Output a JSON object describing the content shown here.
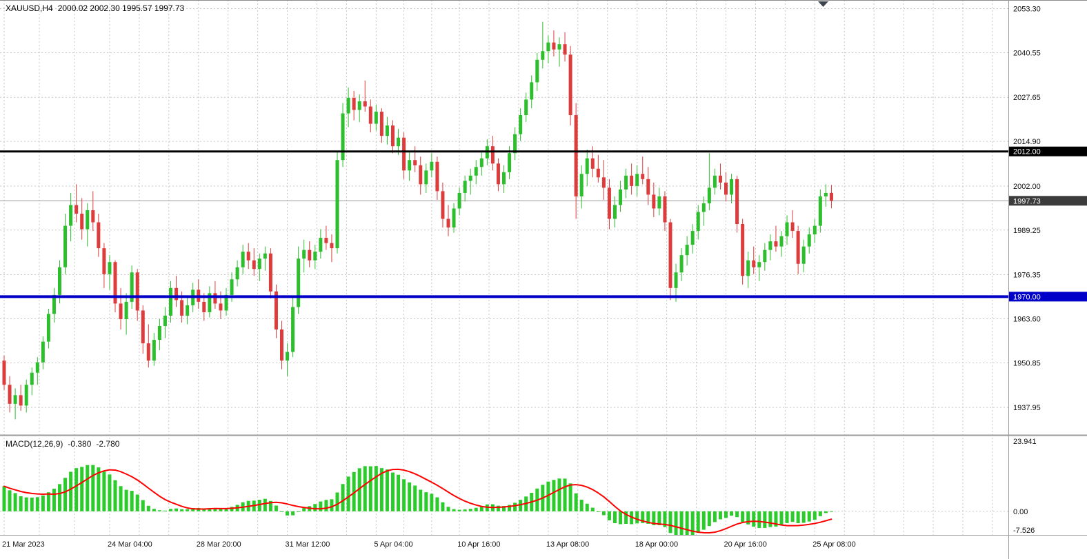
{
  "window": {
    "symbol_period": "XAUUSD,H4",
    "ohlc_text": "2000.02 2002.30 1995.57 1997.73"
  },
  "indicator": {
    "label": "MACD(12,26,9)",
    "value_main": "-0.380",
    "value_signal": "-2.780"
  },
  "chart_data": {
    "type": "candlestick",
    "symbol": "XAUUSD",
    "timeframe": "H4",
    "title": "XAUUSD,H4 2000.02 2002.30 1995.57 1997.73",
    "colors": {
      "background": "#FFFFFF",
      "bull": "#2DBE2D",
      "bear": "#DC3C3C",
      "grid": "#C6C6C6",
      "axis_text": "#111111",
      "bid_line": "#9A9A9A",
      "resistance": "#000000",
      "support": "#0000C8",
      "macd_histogram": "#2BCB2B",
      "macd_signal": "#FF0000"
    },
    "price_axis": {
      "y_top": 2055.8,
      "y_bottom": 1930.2,
      "ticks": [
        "2053.30",
        "2040.55",
        "2027.65",
        "2014.90",
        "2002.00",
        "1989.25",
        "1976.35",
        "1963.60",
        "1950.85",
        "1937.95"
      ]
    },
    "x_labels": [
      {
        "index": 0,
        "label": "21 Mar 2023"
      },
      {
        "index": 19,
        "label": "24 Mar 04:00"
      },
      {
        "index": 35,
        "label": "28 Mar 20:00"
      },
      {
        "index": 51,
        "label": "31 Mar 12:00"
      },
      {
        "index": 67,
        "label": "5 Apr 04:00"
      },
      {
        "index": 82,
        "label": "10 Apr 16:00"
      },
      {
        "index": 98,
        "label": "13 Apr 08:00"
      },
      {
        "index": 114,
        "label": "18 Apr 00:00"
      },
      {
        "index": 130,
        "label": "20 Apr 16:00"
      },
      {
        "index": 146,
        "label": "25 Apr 08:00"
      }
    ],
    "levels": [
      {
        "value": 2012.0,
        "label": "2012.00",
        "color": "#000000",
        "width": 3
      },
      {
        "value": 1970.0,
        "label": "1970.00",
        "color": "#0000C8",
        "width": 4
      }
    ],
    "current_price": {
      "value": 1997.73,
      "label": "1997.73",
      "color": "#3C3C3C"
    },
    "macd": {
      "params": {
        "fast": 12,
        "slow": 26,
        "signal": 9
      },
      "main": -0.38,
      "signal": -2.78,
      "histogram_color": "#2BCB2B",
      "signal_color": "#FF0000",
      "axis": {
        "max": 23.941,
        "min": -7.526,
        "ticks": [
          {
            "v": 23.941,
            "label": "23.941"
          },
          {
            "v": 0,
            "label": "0.00"
          },
          {
            "v": -7.526,
            "label": "-7.526"
          }
        ]
      }
    },
    "candles": [
      [
        1951.5,
        1953.0,
        1943.0,
        1944.5
      ],
      [
        1944.5,
        1947.0,
        1936.5,
        1939.0
      ],
      [
        1939.0,
        1943.5,
        1934.5,
        1941.5
      ],
      [
        1941.5,
        1944.5,
        1937.0,
        1938.5
      ],
      [
        1938.5,
        1946.0,
        1936.5,
        1944.5
      ],
      [
        1944.5,
        1949.5,
        1941.5,
        1948.0
      ],
      [
        1948.0,
        1952.5,
        1944.5,
        1951.0
      ],
      [
        1951.0,
        1958.5,
        1949.0,
        1957.0
      ],
      [
        1957.0,
        1966.5,
        1955.0,
        1965.0
      ],
      [
        1965.0,
        1972.5,
        1962.5,
        1970.5
      ],
      [
        1970.5,
        1980.5,
        1968.0,
        1978.5
      ],
      [
        1978.5,
        1994.0,
        1976.5,
        1990.5
      ],
      [
        1990.5,
        2000.0,
        1986.0,
        1996.5
      ],
      [
        1996.5,
        2002.5,
        1991.5,
        1994.0
      ],
      [
        1994.0,
        1998.5,
        1986.5,
        1989.5
      ],
      [
        1989.5,
        1997.0,
        1984.5,
        1995.0
      ],
      [
        1995.0,
        2000.5,
        1989.0,
        1991.5
      ],
      [
        1991.5,
        1994.0,
        1981.5,
        1984.0
      ],
      [
        1984.0,
        1985.5,
        1972.5,
        1976.5
      ],
      [
        1976.5,
        1982.0,
        1972.0,
        1980.0
      ],
      [
        1980.0,
        1980.5,
        1965.5,
        1968.0
      ],
      [
        1968.0,
        1972.5,
        1960.5,
        1963.5
      ],
      [
        1963.5,
        1971.0,
        1959.0,
        1968.5
      ],
      [
        1968.5,
        1979.0,
        1966.5,
        1977.0
      ],
      [
        1977.0,
        1978.0,
        1963.0,
        1966.0
      ],
      [
        1966.0,
        1967.5,
        1953.5,
        1956.5
      ],
      [
        1956.5,
        1962.0,
        1949.5,
        1951.5
      ],
      [
        1951.5,
        1959.5,
        1950.0,
        1957.5
      ],
      [
        1957.5,
        1963.5,
        1954.5,
        1961.5
      ],
      [
        1961.5,
        1967.0,
        1958.0,
        1964.5
      ],
      [
        1964.5,
        1974.5,
        1962.5,
        1972.5
      ],
      [
        1972.5,
        1976.0,
        1967.0,
        1969.0
      ],
      [
        1969.0,
        1971.5,
        1962.5,
        1964.5
      ],
      [
        1964.5,
        1970.0,
        1962.0,
        1967.5
      ],
      [
        1967.5,
        1974.0,
        1965.5,
        1972.0
      ],
      [
        1972.0,
        1975.0,
        1966.5,
        1968.5
      ],
      [
        1968.5,
        1971.0,
        1963.0,
        1965.5
      ],
      [
        1965.5,
        1973.0,
        1964.0,
        1971.0
      ],
      [
        1971.0,
        1974.5,
        1966.5,
        1968.0
      ],
      [
        1968.0,
        1971.5,
        1963.5,
        1966.0
      ],
      [
        1966.0,
        1972.5,
        1964.5,
        1970.5
      ],
      [
        1970.5,
        1977.0,
        1968.5,
        1975.0
      ],
      [
        1975.0,
        1980.5,
        1973.0,
        1978.5
      ],
      [
        1978.5,
        1985.0,
        1976.5,
        1983.0
      ],
      [
        1983.0,
        1985.5,
        1978.0,
        1980.5
      ],
      [
        1980.5,
        1984.0,
        1976.0,
        1978.0
      ],
      [
        1978.0,
        1982.5,
        1974.5,
        1981.0
      ],
      [
        1981.0,
        1984.5,
        1977.5,
        1982.5
      ],
      [
        1982.5,
        1984.0,
        1969.5,
        1971.5
      ],
      [
        1971.5,
        1973.5,
        1958.0,
        1960.5
      ],
      [
        1960.5,
        1963.0,
        1949.0,
        1951.5
      ],
      [
        1951.5,
        1956.5,
        1947.0,
        1954.0
      ],
      [
        1954.0,
        1970.0,
        1952.5,
        1967.0
      ],
      [
        1967.0,
        1984.5,
        1965.0,
        1981.0
      ],
      [
        1981.0,
        1986.5,
        1977.0,
        1983.5
      ],
      [
        1983.5,
        1986.0,
        1978.5,
        1980.5
      ],
      [
        1980.5,
        1985.0,
        1978.0,
        1983.0
      ],
      [
        1983.0,
        1989.5,
        1981.0,
        1987.0
      ],
      [
        1987.0,
        1990.5,
        1983.5,
        1985.5
      ],
      [
        1985.5,
        1988.0,
        1980.0,
        1984.0
      ],
      [
        1984.0,
        2012.0,
        1982.5,
        2009.5
      ],
      [
        2009.5,
        2026.0,
        2007.5,
        2023.0
      ],
      [
        2023.0,
        2030.5,
        2019.0,
        2027.5
      ],
      [
        2027.5,
        2029.5,
        2021.0,
        2024.0
      ],
      [
        2024.0,
        2028.5,
        2020.5,
        2026.5
      ],
      [
        2026.5,
        2032.5,
        2023.5,
        2025.0
      ],
      [
        2025.0,
        2027.0,
        2017.5,
        2020.0
      ],
      [
        2020.0,
        2025.5,
        2018.0,
        2023.5
      ],
      [
        2023.5,
        2024.5,
        2014.5,
        2016.5
      ],
      [
        2016.5,
        2022.0,
        2014.0,
        2019.5
      ],
      [
        2019.5,
        2021.0,
        2011.5,
        2013.5
      ],
      [
        2013.5,
        2018.5,
        2011.0,
        2016.0
      ],
      [
        2016.0,
        2017.5,
        2004.0,
        2006.5
      ],
      [
        2006.5,
        2012.0,
        2003.5,
        2009.5
      ],
      [
        2009.5,
        2013.5,
        2006.0,
        2008.0
      ],
      [
        2008.0,
        2010.5,
        1999.5,
        2002.5
      ],
      [
        2002.5,
        2008.5,
        2000.0,
        2006.5
      ],
      [
        2006.5,
        2011.5,
        2004.5,
        2009.0
      ],
      [
        2009.0,
        2010.5,
        1998.0,
        2000.5
      ],
      [
        2000.5,
        2003.0,
        1990.0,
        1992.5
      ],
      [
        1992.5,
        1996.5,
        1987.5,
        1990.0
      ],
      [
        1990.0,
        1997.0,
        1988.5,
        1995.5
      ],
      [
        1995.5,
        2001.5,
        1993.5,
        2000.0
      ],
      [
        2000.0,
        2005.0,
        1997.5,
        2003.5
      ],
      [
        2003.5,
        2007.0,
        1999.5,
        2005.0
      ],
      [
        2005.0,
        2009.5,
        2002.5,
        2007.5
      ],
      [
        2007.5,
        2012.0,
        2005.0,
        2010.0
      ],
      [
        2010.0,
        2015.5,
        2008.0,
        2013.5
      ],
      [
        2013.5,
        2016.5,
        2006.5,
        2008.5
      ],
      [
        2008.5,
        2010.0,
        2000.5,
        2002.5
      ],
      [
        2002.5,
        2008.0,
        2000.0,
        2006.0
      ],
      [
        2006.0,
        2013.5,
        2004.0,
        2011.5
      ],
      [
        2011.5,
        2019.0,
        2009.5,
        2017.0
      ],
      [
        2017.0,
        2024.5,
        2015.0,
        2022.5
      ],
      [
        2022.5,
        2029.0,
        2020.5,
        2027.0
      ],
      [
        2027.0,
        2034.0,
        2024.5,
        2032.0
      ],
      [
        2032.0,
        2040.5,
        2029.5,
        2038.5
      ],
      [
        2038.5,
        2049.5,
        2036.0,
        2041.0
      ],
      [
        2041.0,
        2045.5,
        2037.5,
        2043.5
      ],
      [
        2043.5,
        2047.0,
        2039.5,
        2041.5
      ],
      [
        2041.5,
        2045.0,
        2036.5,
        2043.0
      ],
      [
        2043.0,
        2046.5,
        2038.0,
        2040.0
      ],
      [
        2040.0,
        2042.5,
        2019.5,
        2022.5
      ],
      [
        2022.5,
        2026.0,
        1992.5,
        1999.0
      ],
      [
        1999.0,
        2008.0,
        1995.5,
        2005.5
      ],
      [
        2005.5,
        2012.5,
        2002.0,
        2010.0
      ],
      [
        2010.0,
        2013.5,
        2004.5,
        2007.0
      ],
      [
        2007.0,
        2011.0,
        2003.0,
        2004.5
      ],
      [
        2004.5,
        2009.5,
        1998.0,
        2001.5
      ],
      [
        2001.5,
        2004.0,
        1989.5,
        1992.5
      ],
      [
        1992.5,
        1999.0,
        1990.0,
        1996.5
      ],
      [
        1996.5,
        2003.5,
        1994.5,
        2001.0
      ],
      [
        2001.0,
        2007.0,
        1998.5,
        2005.0
      ],
      [
        2005.0,
        2008.5,
        1999.5,
        2002.0
      ],
      [
        2002.0,
        2008.0,
        1999.0,
        2005.5
      ],
      [
        2005.5,
        2010.5,
        2002.5,
        2004.0
      ],
      [
        2004.0,
        2007.5,
        1996.5,
        1999.5
      ],
      [
        1999.5,
        2003.0,
        1993.0,
        1995.5
      ],
      [
        1995.5,
        2001.5,
        1993.5,
        1999.0
      ],
      [
        1999.0,
        2000.5,
        1989.0,
        1991.5
      ],
      [
        1991.5,
        1992.5,
        1969.0,
        1972.5
      ],
      [
        1972.5,
        1979.5,
        1968.5,
        1977.0
      ],
      [
        1977.0,
        1984.0,
        1974.5,
        1982.0
      ],
      [
        1982.0,
        1987.5,
        1979.0,
        1985.0
      ],
      [
        1985.0,
        1991.0,
        1982.5,
        1989.0
      ],
      [
        1989.0,
        1996.5,
        1986.5,
        1994.5
      ],
      [
        1994.5,
        1999.0,
        1990.5,
        1997.0
      ],
      [
        1997.0,
        2011.5,
        1995.0,
        2001.5
      ],
      [
        2001.5,
        2007.0,
        1999.5,
        2005.0
      ],
      [
        2005.0,
        2008.5,
        2001.0,
        2003.0
      ],
      [
        2003.0,
        2006.0,
        1997.5,
        1999.5
      ],
      [
        1999.5,
        2005.5,
        1997.0,
        2004.0
      ],
      [
        2004.0,
        2005.0,
        1988.5,
        1991.0
      ],
      [
        1991.0,
        1992.5,
        1973.5,
        1976.0
      ],
      [
        1976.0,
        1983.0,
        1972.5,
        1980.5
      ],
      [
        1980.5,
        1984.5,
        1976.5,
        1978.5
      ],
      [
        1978.5,
        1982.0,
        1974.5,
        1980.0
      ],
      [
        1980.0,
        1985.5,
        1977.5,
        1983.5
      ],
      [
        1983.5,
        1988.0,
        1980.5,
        1986.0
      ],
      [
        1986.0,
        1990.5,
        1983.0,
        1984.5
      ],
      [
        1984.5,
        1989.0,
        1981.5,
        1987.5
      ],
      [
        1987.5,
        1993.5,
        1985.0,
        1991.5
      ],
      [
        1991.5,
        1995.0,
        1987.0,
        1989.0
      ],
      [
        1989.0,
        1990.5,
        1976.5,
        1979.5
      ],
      [
        1979.5,
        1986.5,
        1977.0,
        1984.5
      ],
      [
        1984.5,
        1990.0,
        1982.5,
        1988.0
      ],
      [
        1988.0,
        1992.5,
        1985.5,
        1990.5
      ],
      [
        1990.5,
        2001.0,
        1988.5,
        1999.0
      ],
      [
        1999.0,
        2002.5,
        1996.0,
        2000.0
      ],
      [
        2000.02,
        2002.3,
        1995.57,
        1997.73
      ]
    ]
  }
}
